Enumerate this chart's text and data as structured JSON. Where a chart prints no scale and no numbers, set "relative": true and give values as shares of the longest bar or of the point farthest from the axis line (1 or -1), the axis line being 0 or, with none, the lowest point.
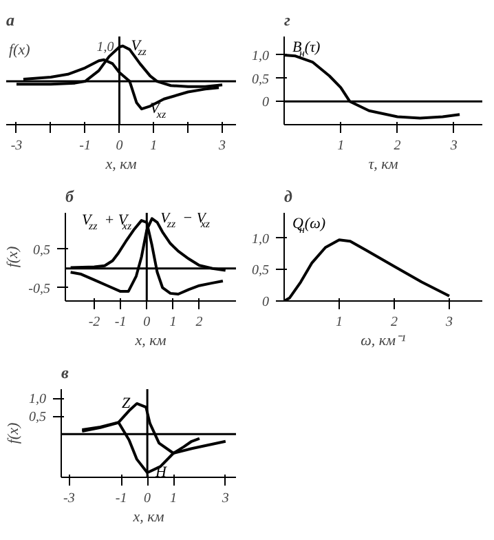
{
  "chart_data": [
    {
      "type": "line",
      "title": "а",
      "ylabel": "f(x)",
      "xlabel": "x, км",
      "xlim": [
        -3.3,
        3.4
      ],
      "relative": true,
      "annotations": [
        "1,0"
      ],
      "xticks": [
        -3,
        {
          "value": -2,
          "label": null
        },
        -1,
        0,
        1,
        {
          "value": 2,
          "label": null
        },
        3
      ],
      "ref_lines": [
        {
          "axis": "x",
          "value": 0
        },
        {
          "axis": "y",
          "value": 0
        }
      ],
      "series": [
        {
          "name": "V$_{zz}$",
          "color": "#000000",
          "x": [
            -3,
            -2,
            -1.3,
            -1,
            -0.6,
            -0.3,
            0,
            0.1,
            0.3,
            0.6,
            0.9,
            1.1,
            1.5,
            2,
            2.5,
            3
          ],
          "values": [
            -0.08,
            -0.08,
            -0.05,
            0,
            0.3,
            0.7,
            0.97,
            1.0,
            0.9,
            0.5,
            0.15,
            0,
            -0.12,
            -0.15,
            -0.15,
            -0.1
          ]
        },
        {
          "name": "V$_{xz}$",
          "color": "#000000",
          "x": [
            -2.8,
            -2,
            -1.5,
            -1,
            -0.6,
            -0.45,
            -0.2,
            0,
            0.3,
            0.5,
            0.65,
            0.9,
            1.3,
            2,
            2.5,
            2.9
          ],
          "values": [
            0.06,
            0.12,
            0.2,
            0.38,
            0.58,
            0.61,
            0.5,
            0.25,
            0,
            -0.6,
            -0.78,
            -0.7,
            -0.5,
            -0.3,
            -0.22,
            -0.18
          ]
        }
      ]
    },
    {
      "type": "line",
      "title": "г",
      "ylabel": "B$_{н}$(τ)",
      "xlabel": "τ, км",
      "xlim": [
        0,
        3.5
      ],
      "ylim": [
        -0.5,
        1.4
      ],
      "xticks": [
        1,
        2,
        3
      ],
      "yticks": [
        0,
        {
          "value": 0.5,
          "label": "0,5"
        },
        {
          "value": 1,
          "label": "1,0"
        }
      ],
      "ref_lines": [
        {
          "axis": "y",
          "value": 0
        }
      ],
      "series": [
        {
          "color": "#000000",
          "x": [
            0,
            0.2,
            0.5,
            0.8,
            1,
            1.16,
            1.5,
            2,
            2.4,
            2.8,
            3.1
          ],
          "values": [
            1.0,
            0.98,
            0.85,
            0.55,
            0.3,
            0,
            -0.2,
            -0.33,
            -0.36,
            -0.33,
            -0.28
          ]
        }
      ]
    },
    {
      "type": "line",
      "title": "б",
      "ylabel": "f(x)",
      "xlabel": "x, км",
      "xlim": [
        -3.1,
        3.4
      ],
      "ylim": [
        -0.85,
        1.45
      ],
      "xticks": [
        -2,
        -1,
        0,
        1,
        2
      ],
      "yticks": [
        {
          "value": -0.5,
          "label": "-0,5"
        },
        {
          "value": 0.5,
          "label": "0,5"
        }
      ],
      "ref_lines": [
        {
          "axis": "x",
          "value": 0
        },
        {
          "axis": "y",
          "value": 0
        }
      ],
      "series": [
        {
          "name": "V$_{zz}$ + V$_{xz}$",
          "color": "#000000",
          "x": [
            -2.9,
            -2,
            -1.6,
            -1.3,
            -1.1,
            -0.8,
            -0.5,
            -0.2,
            0,
            0.2,
            0.4,
            0.6,
            0.9,
            1.2,
            1.6,
            2,
            2.5,
            2.9
          ],
          "values": [
            0.02,
            0.04,
            0.07,
            0.2,
            0.38,
            0.7,
            1.0,
            1.25,
            1.2,
            0.6,
            -0.1,
            -0.5,
            -0.65,
            -0.67,
            -0.55,
            -0.45,
            -0.38,
            -0.33
          ]
        },
        {
          "name": "V$_{zz}$ − V$_{xz}$",
          "color": "#000000",
          "x": [
            -2.9,
            -2.5,
            -2,
            -1.5,
            -1,
            -0.7,
            -0.4,
            -0.2,
            0,
            0.2,
            0.4,
            0.6,
            0.9,
            1.2,
            1.6,
            2,
            2.5,
            3
          ],
          "values": [
            -0.1,
            -0.15,
            -0.3,
            -0.45,
            -0.6,
            -0.6,
            -0.2,
            0.3,
            1.0,
            1.3,
            1.2,
            0.95,
            0.65,
            0.45,
            0.25,
            0.08,
            0,
            -0.05
          ]
        }
      ]
    },
    {
      "type": "line",
      "title": "д",
      "ylabel": "Q$_{н}$(ω)",
      "xlabel": "ω, км⁻¹",
      "xlim": [
        0,
        3.6
      ],
      "ylim": [
        0,
        1.4
      ],
      "xticks": [
        1,
        2,
        3
      ],
      "yticks": [
        0,
        {
          "value": 0.5,
          "label": "0,5"
        },
        {
          "value": 1,
          "label": "1,0"
        }
      ],
      "series": [
        {
          "color": "#000000",
          "x": [
            0,
            0.1,
            0.3,
            0.5,
            0.75,
            1,
            1.2,
            1.5,
            2,
            2.5,
            3
          ],
          "values": [
            0,
            0.05,
            0.3,
            0.6,
            0.85,
            0.97,
            0.95,
            0.8,
            0.55,
            0.3,
            0.08
          ]
        }
      ]
    },
    {
      "type": "line",
      "title": "в",
      "ylabel": "f(x)",
      "xlabel": "x, км",
      "xlim": [
        -3.3,
        3.4
      ],
      "ylim": [
        -1.2,
        1.25
      ],
      "xticks": [
        -3,
        -1,
        0,
        1,
        3
      ],
      "yticks": [
        {
          "value": 0.5,
          "label": "0,5"
        },
        {
          "value": 1,
          "label": "1,0"
        }
      ],
      "ref_lines": [
        {
          "axis": "x",
          "value": 0
        },
        {
          "axis": "y",
          "value": 0
        }
      ],
      "series": [
        {
          "name": "Z",
          "color": "#000000",
          "x": [
            -2.5,
            -1.8,
            -1.1,
            -0.7,
            -0.4,
            -0.05,
            0.1,
            0.45,
            1,
            1.4,
            1.7,
            2
          ],
          "values": [
            0.12,
            0.2,
            0.33,
            0.65,
            0.85,
            0.75,
            0.3,
            -0.25,
            -0.53,
            -0.35,
            -0.2,
            -0.12
          ]
        },
        {
          "name": "H",
          "color": "#000000",
          "x": [
            -2.5,
            -1.8,
            -1.1,
            -0.7,
            -0.4,
            0,
            0.5,
            1,
            1.7,
            3
          ],
          "values": [
            0.08,
            0.18,
            0.32,
            -0.16,
            -0.7,
            -1.07,
            -0.9,
            -0.53,
            -0.4,
            -0.2
          ]
        }
      ]
    }
  ]
}
